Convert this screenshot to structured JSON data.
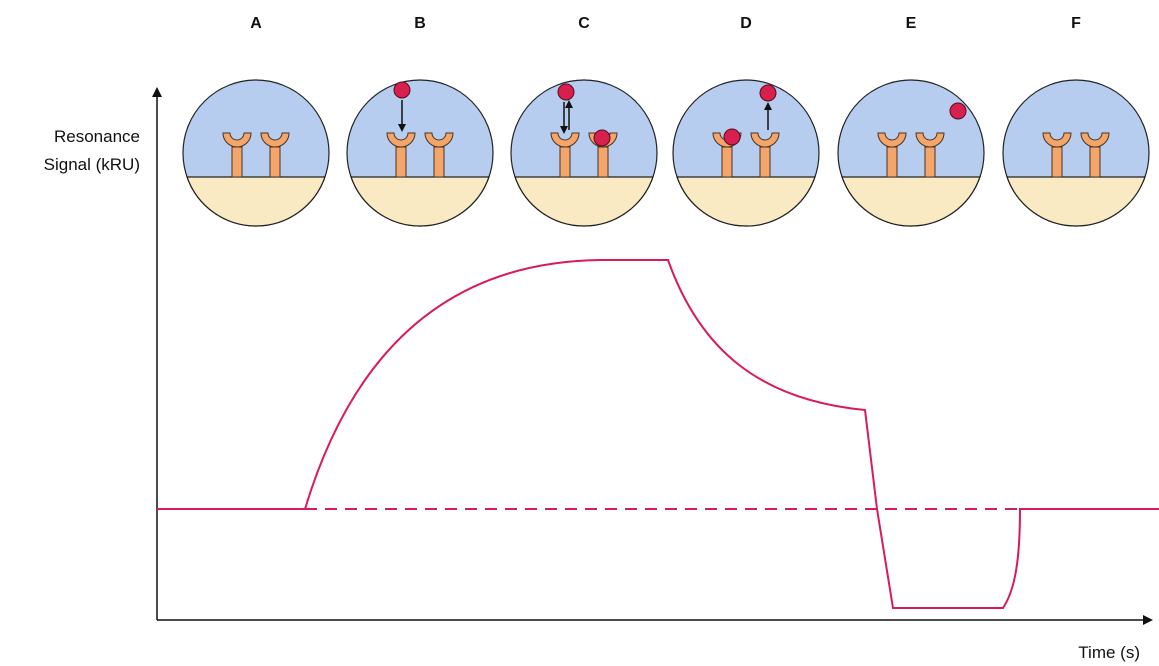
{
  "panels": [
    {
      "label": "A"
    },
    {
      "label": "B"
    },
    {
      "label": "C"
    },
    {
      "label": "D"
    },
    {
      "label": "E"
    },
    {
      "label": "F"
    }
  ],
  "y_axis": {
    "label_line1": "Resonance",
    "label_line2": "Signal (kRU)"
  },
  "x_axis": {
    "label": "Time (s)"
  }
}
